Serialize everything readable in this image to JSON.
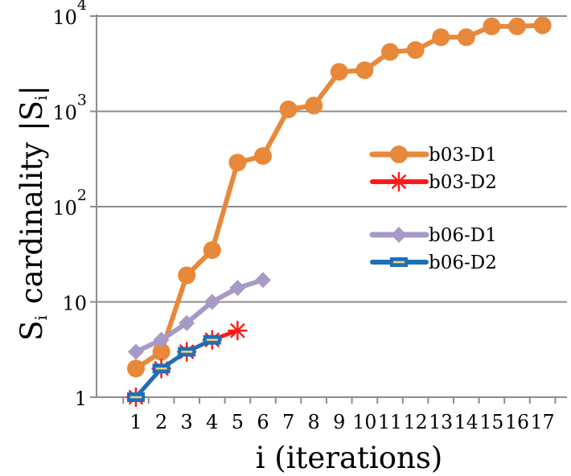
{
  "chart_data": {
    "type": "line",
    "y_scale": "log10",
    "ylim": [
      1,
      10000
    ],
    "grid": true,
    "legend_placement": "right",
    "xlabel": "i (iterations)",
    "ylabel": "Si cardinality |Si|",
    "ylabel_parts": {
      "sym1": "S",
      "sub1": "i",
      "word": "cardinality",
      "bar_left": "|",
      "sym2": "S",
      "sub2": "i",
      "bar_right": "|"
    },
    "x_categories": [
      "1",
      "2",
      "3",
      "4",
      "5",
      "6",
      "7",
      "8",
      "9",
      "10",
      "11",
      "12",
      "13",
      "14",
      "15",
      "16",
      "17"
    ],
    "y_ticks": [
      {
        "value": 1,
        "base": "1",
        "exp": ""
      },
      {
        "value": 10,
        "base": "10",
        "exp": ""
      },
      {
        "value": 100,
        "base": "10",
        "exp": "2"
      },
      {
        "value": 1000,
        "base": "10",
        "exp": "3"
      },
      {
        "value": 10000,
        "base": "10",
        "exp": "4"
      }
    ],
    "series": [
      {
        "name": "b03-D1",
        "color": "#e8883a",
        "marker": "circle",
        "width": 6,
        "x": [
          1,
          2,
          3,
          4,
          5,
          6,
          7,
          8,
          9,
          10,
          11,
          12,
          13,
          14,
          15,
          16,
          17
        ],
        "y": [
          2,
          3,
          19,
          35,
          290,
          340,
          1050,
          1150,
          2600,
          2700,
          4200,
          4400,
          6000,
          6000,
          7800,
          7800,
          8000
        ]
      },
      {
        "name": "b03-D2",
        "color": "#ff1a1a",
        "marker": "asterisk",
        "width": 5,
        "x": [
          1,
          2,
          3,
          4,
          5
        ],
        "y": [
          1,
          2,
          3,
          4,
          5
        ]
      },
      {
        "name": "b06-D1",
        "color": "#a89ac6",
        "marker": "diamond",
        "width": 6,
        "x": [
          1,
          2,
          3,
          4,
          5,
          6
        ],
        "y": [
          3,
          4,
          6,
          10,
          14,
          17
        ]
      },
      {
        "name": "b06-D2",
        "color": "#1e6fb8",
        "marker": "dash",
        "width": 5,
        "x": [
          1,
          2,
          3,
          4
        ],
        "y": [
          1,
          2,
          3,
          4
        ]
      }
    ]
  }
}
